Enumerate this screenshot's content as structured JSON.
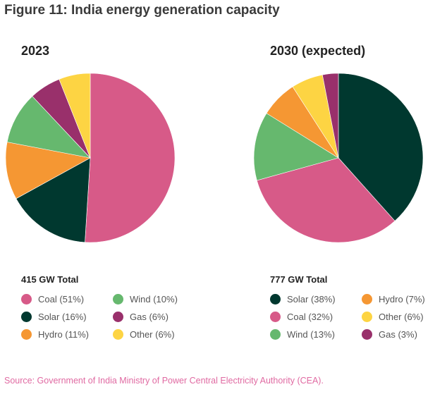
{
  "title": "Figure 11: India energy generation capacity",
  "source": "Source: Government of India Ministry of Power Central Electricity Authority (CEA).",
  "colors": {
    "Coal": "#d75a88",
    "Solar": "#00382f",
    "Hydro": "#f59733",
    "Wind": "#66b86e",
    "Gas": "#99306b",
    "Other": "#fdd443"
  },
  "chart_data": [
    {
      "type": "pie",
      "title": "2023",
      "total_label": "415 GW Total",
      "unit": "%",
      "slices": [
        {
          "label": "Coal",
          "value": 51,
          "legend": "Coal (51%)"
        },
        {
          "label": "Solar",
          "value": 16,
          "legend": "Solar (16%)"
        },
        {
          "label": "Hydro",
          "value": 11,
          "legend": "Hydro (11%)"
        },
        {
          "label": "Wind",
          "value": 10,
          "legend": "Wind (10%)"
        },
        {
          "label": "Gas",
          "value": 6,
          "legend": "Gas (6%)"
        },
        {
          "label": "Other",
          "value": 6,
          "legend": "Other (6%)"
        }
      ]
    },
    {
      "type": "pie",
      "title": "2030 (expected)",
      "total_label": "777 GW Total",
      "unit": "%",
      "slices": [
        {
          "label": "Solar",
          "value": 38,
          "legend": "Solar (38%)"
        },
        {
          "label": "Coal",
          "value": 32,
          "legend": "Coal (32%)"
        },
        {
          "label": "Wind",
          "value": 13,
          "legend": "Wind (13%)"
        },
        {
          "label": "Hydro",
          "value": 7,
          "legend": "Hydro (7%)"
        },
        {
          "label": "Other",
          "value": 6,
          "legend": "Other (6%)"
        },
        {
          "label": "Gas",
          "value": 3,
          "legend": "Gas (3%)"
        }
      ]
    }
  ]
}
